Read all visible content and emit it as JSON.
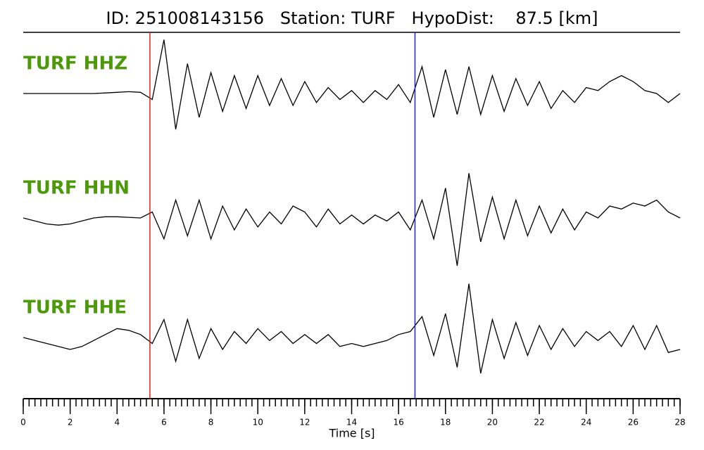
{
  "chart_data": {
    "type": "line",
    "title": "ID: 251008143156   Station: TURF   HypoDist:    87.5 [km]",
    "x_label": "Time [s]",
    "x": [
      0,
      0.5,
      1,
      1.5,
      2,
      2.5,
      3,
      3.5,
      4,
      4.5,
      5,
      5.5,
      6,
      6.5,
      7,
      7.5,
      8,
      8.5,
      9,
      9.5,
      10,
      10.5,
      11,
      11.5,
      12,
      12.5,
      13,
      13.5,
      14,
      14.5,
      15,
      15.5,
      16,
      16.5,
      17,
      17.5,
      18,
      18.5,
      19,
      19.5,
      20,
      20.5,
      21,
      21.5,
      22,
      22.5,
      23,
      23.5,
      24,
      24.5,
      25,
      25.5,
      26,
      26.5,
      27,
      27.5,
      28
    ],
    "xlim": [
      0,
      28
    ],
    "xticks": [
      0,
      2,
      4,
      6,
      8,
      10,
      12,
      14,
      16,
      18,
      20,
      22,
      24,
      26,
      28
    ],
    "xminor": 0.25,
    "ylim": [
      -1,
      1
    ],
    "label_color": "#4c9a0a",
    "series": [
      {
        "name": "TURF HHZ",
        "color": "#000000",
        "values": [
          0,
          0,
          0,
          0,
          0,
          0,
          0,
          0.01,
          0.02,
          0.03,
          0.02,
          -0.1,
          0.9,
          -0.6,
          0.5,
          -0.4,
          0.35,
          -0.3,
          0.3,
          -0.25,
          0.3,
          -0.2,
          0.25,
          -0.2,
          0.2,
          -0.15,
          0.1,
          -0.1,
          0.05,
          -0.15,
          0.05,
          -0.1,
          0.15,
          -0.15,
          0.45,
          -0.4,
          0.4,
          -0.35,
          0.45,
          -0.35,
          0.3,
          -0.3,
          0.25,
          -0.2,
          0.2,
          -0.25,
          0.05,
          -0.15,
          0.1,
          0.05,
          0.2,
          0.3,
          0.2,
          0.05,
          0,
          -0.15,
          0
        ]
      },
      {
        "name": "TURF HHN",
        "color": "#000000",
        "values": [
          0,
          -0.05,
          -0.1,
          -0.12,
          -0.1,
          -0.05,
          0,
          0.02,
          0.02,
          0.01,
          0,
          0.1,
          -0.35,
          0.3,
          -0.3,
          0.3,
          -0.35,
          0.2,
          -0.2,
          0.15,
          -0.15,
          0.1,
          -0.1,
          0.2,
          0.1,
          -0.15,
          0.15,
          -0.1,
          0.05,
          -0.1,
          0.05,
          -0.05,
          0.1,
          -0.2,
          0.3,
          -0.35,
          0.5,
          -0.8,
          0.75,
          -0.4,
          0.35,
          -0.35,
          0.3,
          -0.3,
          0.2,
          -0.25,
          0.15,
          -0.2,
          0.1,
          0,
          0.2,
          0.15,
          0.25,
          0.2,
          0.3,
          0.1,
          0
        ]
      },
      {
        "name": "TURF HHE",
        "color": "#000000",
        "values": [
          0,
          -0.05,
          -0.1,
          -0.15,
          -0.2,
          -0.15,
          -0.05,
          0.05,
          0.15,
          0.12,
          0.05,
          -0.1,
          0.3,
          -0.4,
          0.3,
          -0.35,
          0.15,
          -0.2,
          0.1,
          -0.1,
          0.15,
          -0.05,
          0.1,
          -0.1,
          0.05,
          -0.1,
          0.05,
          -0.15,
          -0.1,
          -0.15,
          -0.1,
          -0.05,
          0.05,
          0.1,
          0.35,
          -0.3,
          0.4,
          -0.5,
          0.9,
          -0.6,
          0.3,
          -0.35,
          0.25,
          -0.3,
          0.2,
          -0.2,
          0.15,
          -0.15,
          0.1,
          -0.05,
          0.1,
          -0.15,
          0.2,
          -0.2,
          0.2,
          -0.25,
          -0.2
        ]
      }
    ],
    "markers": [
      {
        "x": 5.4,
        "color": "#e02020"
      },
      {
        "x": 16.7,
        "color": "#1f1fe0"
      }
    ]
  }
}
